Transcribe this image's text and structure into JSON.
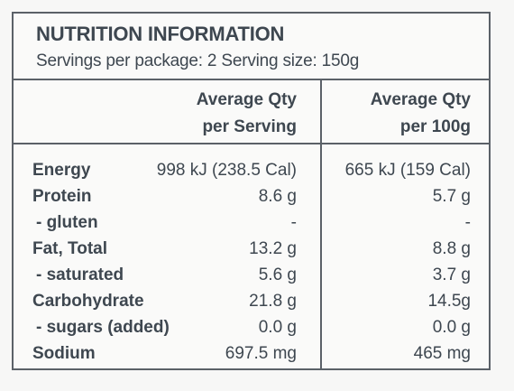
{
  "panel": {
    "title": "NUTRITION INFORMATION",
    "subtitle": "Servings per package: 2  Serving size: 150g"
  },
  "columns": {
    "per_serving_line1": "Average Qty",
    "per_serving_line2": "per Serving",
    "per_100g_line1": "Average Qty",
    "per_100g_line2": "per 100g"
  },
  "rows": [
    {
      "label": "Energy",
      "per_serving": "998 kJ (238.5 Cal)",
      "per_100g": "665 kJ (159 Cal)"
    },
    {
      "label": "Protein",
      "per_serving": "8.6 g",
      "per_100g": "5.7 g"
    },
    {
      "label": "- gluten",
      "per_serving": "-",
      "per_100g": "-"
    },
    {
      "label": "Fat, Total",
      "per_serving": "13.2 g",
      "per_100g": "8.8 g"
    },
    {
      "label": "- saturated",
      "per_serving": "5.6 g",
      "per_100g": "3.7 g"
    },
    {
      "label": "Carbohydrate",
      "per_serving": "21.8 g",
      "per_100g": "14.5g"
    },
    {
      "label": "- sugars (added)",
      "per_serving": "0.0 g",
      "per_100g": "0.0 g"
    },
    {
      "label": "Sodium",
      "per_serving": "697.5 mg",
      "per_100g": "465 mg"
    }
  ]
}
